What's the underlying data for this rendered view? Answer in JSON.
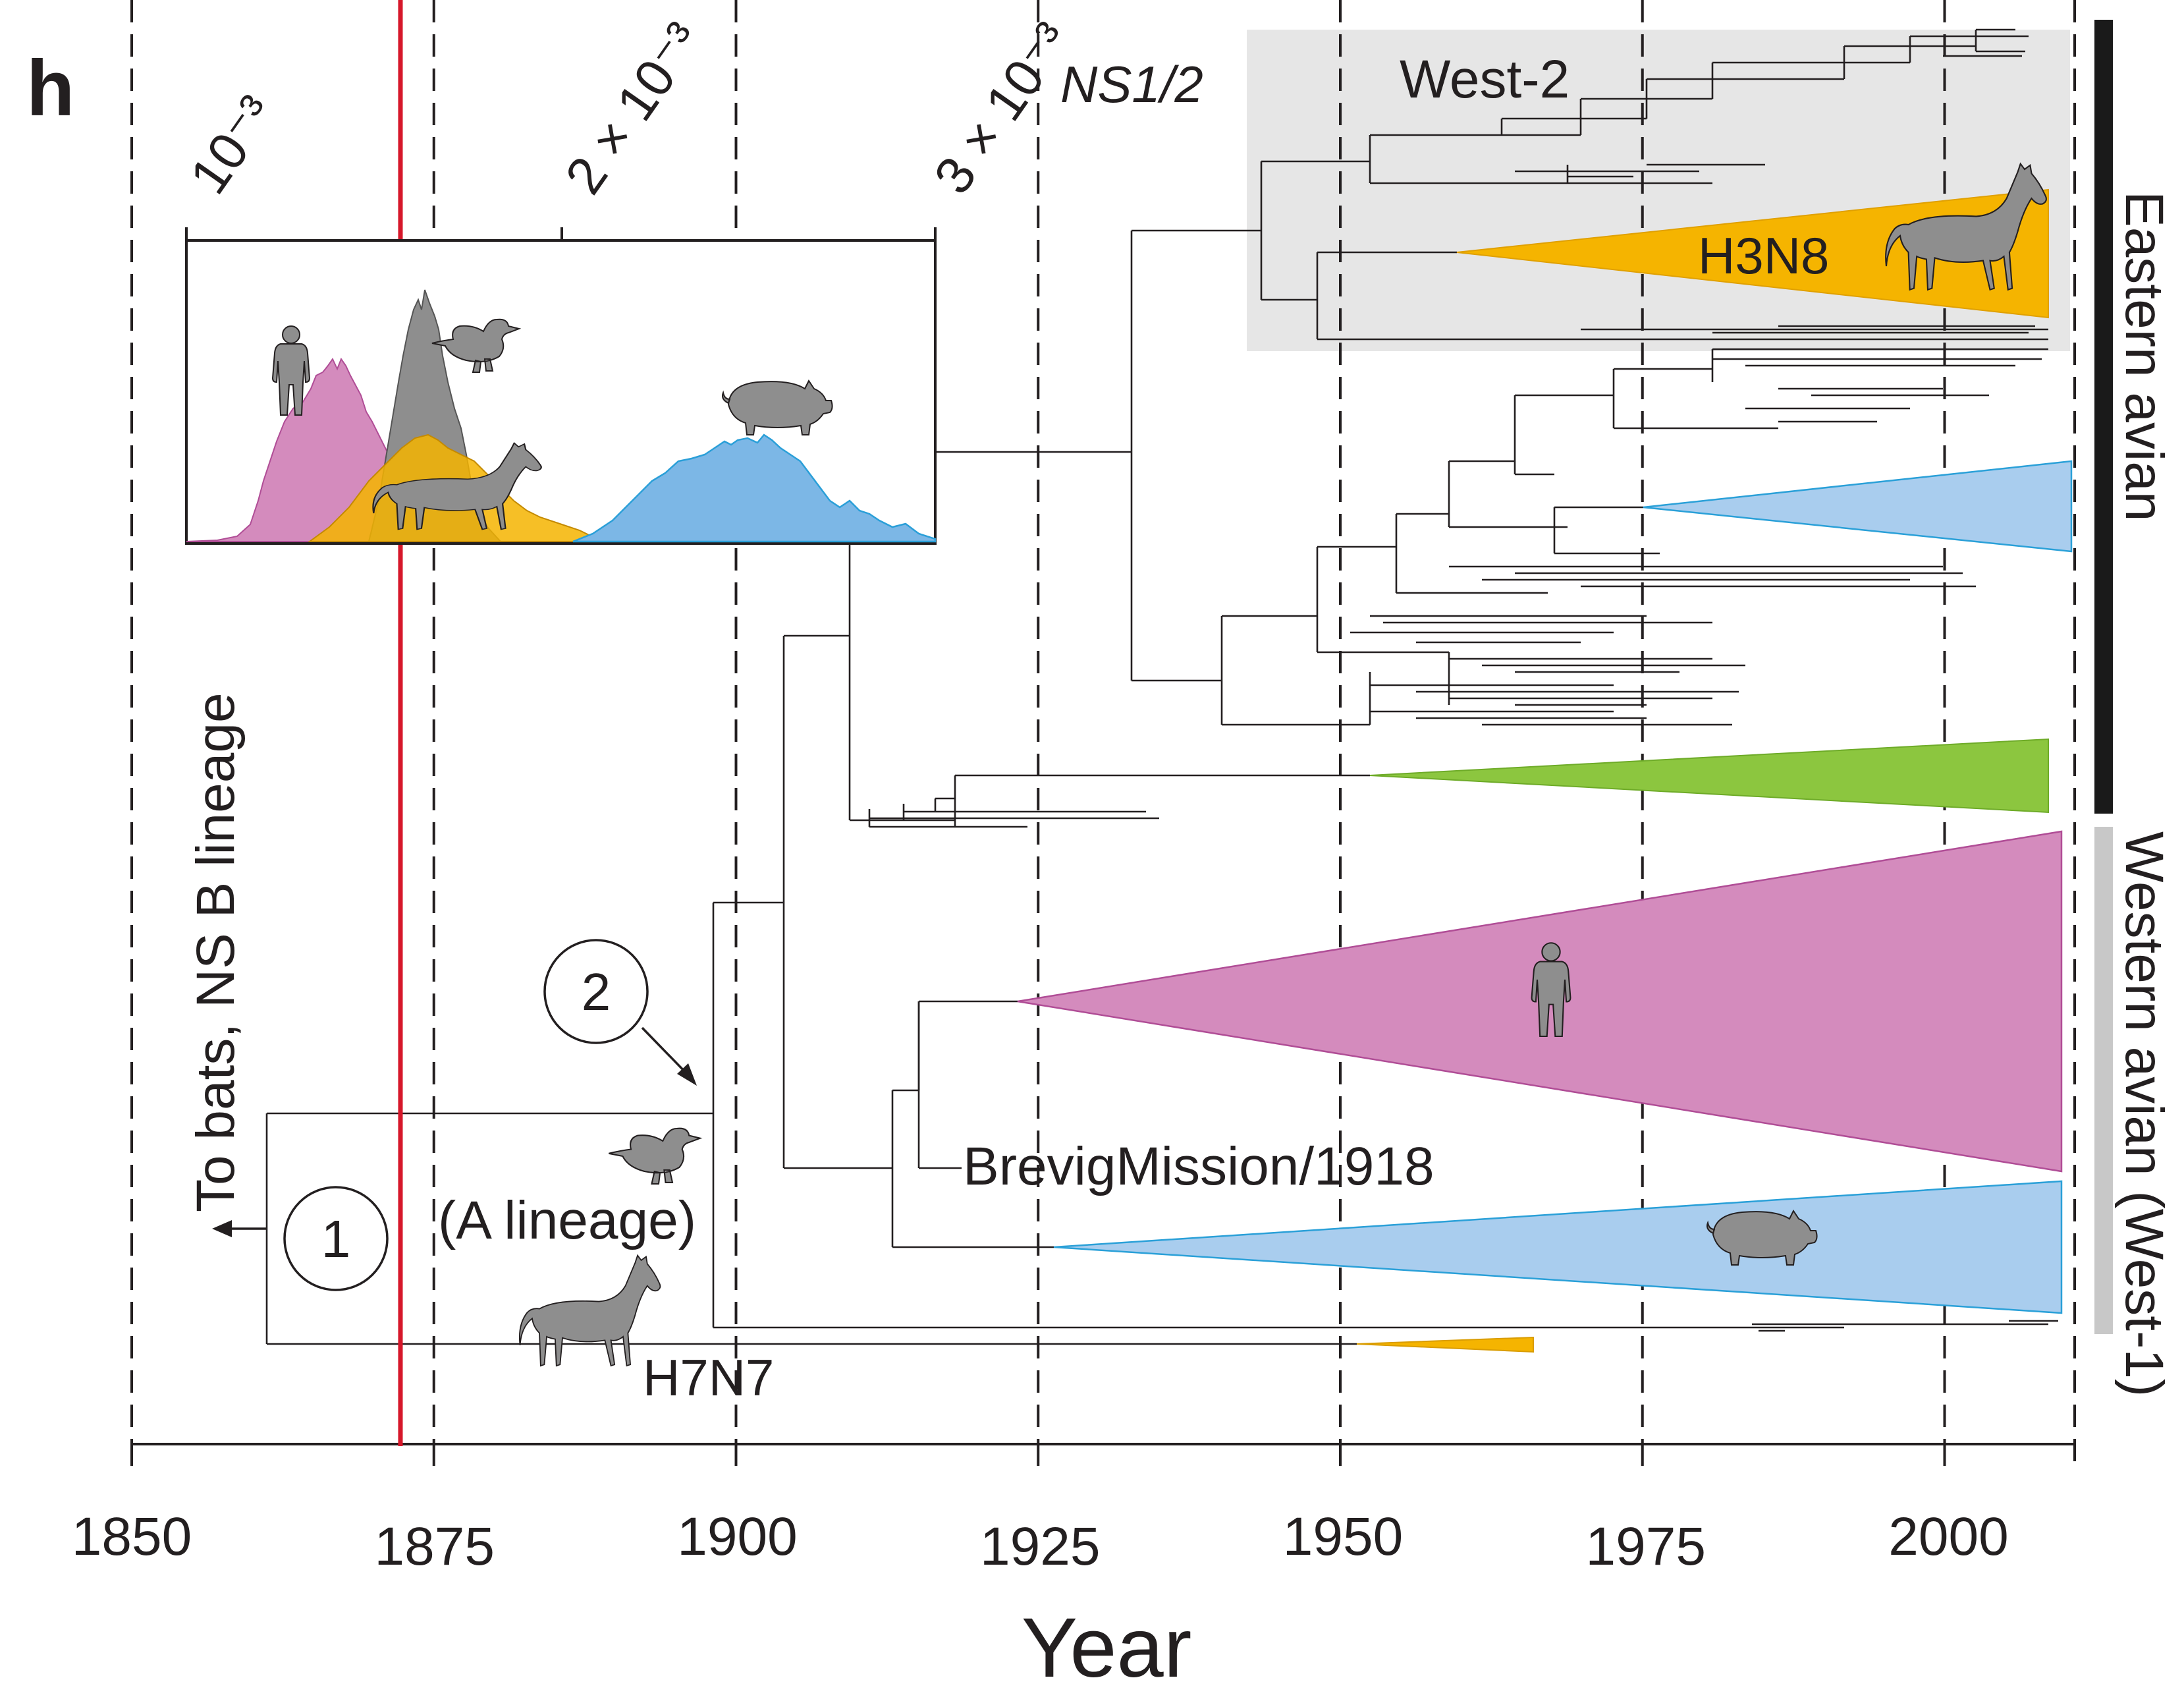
{
  "panel_label": "h",
  "segment_label": "NS1/2",
  "axis": {
    "title": "Year",
    "ticks": [
      "1850",
      "1875",
      "1900",
      "1925",
      "1950",
      "1975",
      "2000"
    ]
  },
  "rate_axis": {
    "ticks": [
      "10⁻³",
      "2 × 10⁻³",
      "3 × 10⁻³"
    ]
  },
  "labels": {
    "west2": "West-2",
    "h3n8": "H3N8",
    "h7n7": "H7N7",
    "brevig": "BrevigMission/1918",
    "a_lineage": "(A lineage)",
    "to_bats": "To bats, NS B lineage",
    "eastern": "Eastern avian",
    "western": "Western avian (West-1)",
    "node1": "1",
    "node2": "2"
  },
  "colors": {
    "human": "#d48bbd",
    "swine": "#7cb7e6",
    "equine": "#f5b400",
    "avian": "#8e8e8e",
    "green": "#8cc63f",
    "red_line": "#d6172a",
    "shade": "#e6e6e6"
  },
  "icons": [
    "human-silhouette-icon",
    "duck-silhouette-icon",
    "horse-silhouette-icon",
    "pig-silhouette-icon"
  ]
}
